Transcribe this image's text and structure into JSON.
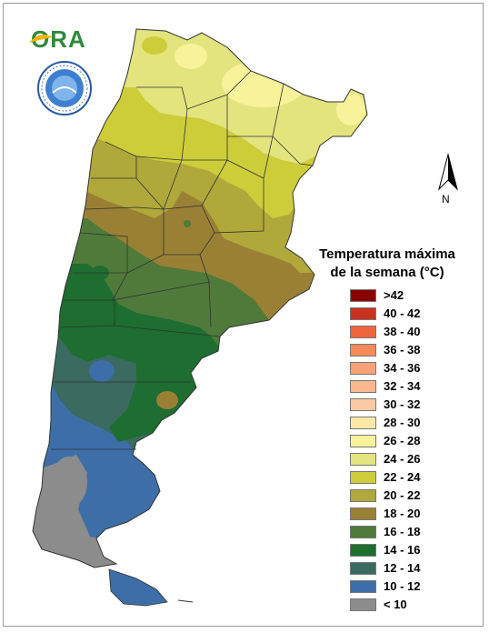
{
  "logo": {
    "text": "ORA"
  },
  "compass": {
    "label": "N"
  },
  "legend": {
    "title_line1": "Temperatura máxima",
    "title_line2": "de la semana (°C)",
    "items": [
      {
        "label": ">42",
        "color": "#8b0000"
      },
      {
        "label": "40 - 42",
        "color": "#c8321e"
      },
      {
        "label": "38 - 40",
        "color": "#f0643c"
      },
      {
        "label": "36 - 38",
        "color": "#f88a5a"
      },
      {
        "label": "34 - 36",
        "color": "#faa276"
      },
      {
        "label": "32 - 34",
        "color": "#fbb88f"
      },
      {
        "label": "30 - 32",
        "color": "#fccaa2"
      },
      {
        "label": "28 - 30",
        "color": "#fde9a6"
      },
      {
        "label": "26 - 28",
        "color": "#f8f29a"
      },
      {
        "label": "24 - 26",
        "color": "#e4e47e"
      },
      {
        "label": "22 - 24",
        "color": "#cdcd3a"
      },
      {
        "label": "20 - 22",
        "color": "#b0a83a"
      },
      {
        "label": "18 - 20",
        "color": "#9a8034"
      },
      {
        "label": "16 - 18",
        "color": "#4f7a3a"
      },
      {
        "label": "14 - 16",
        "color": "#1d6e30"
      },
      {
        "label": "12 - 14",
        "color": "#3a6a60"
      },
      {
        "label": "10 - 12",
        "color": "#3d6ea8"
      },
      {
        "label": "< 10",
        "color": "#8c8c8c"
      }
    ]
  }
}
